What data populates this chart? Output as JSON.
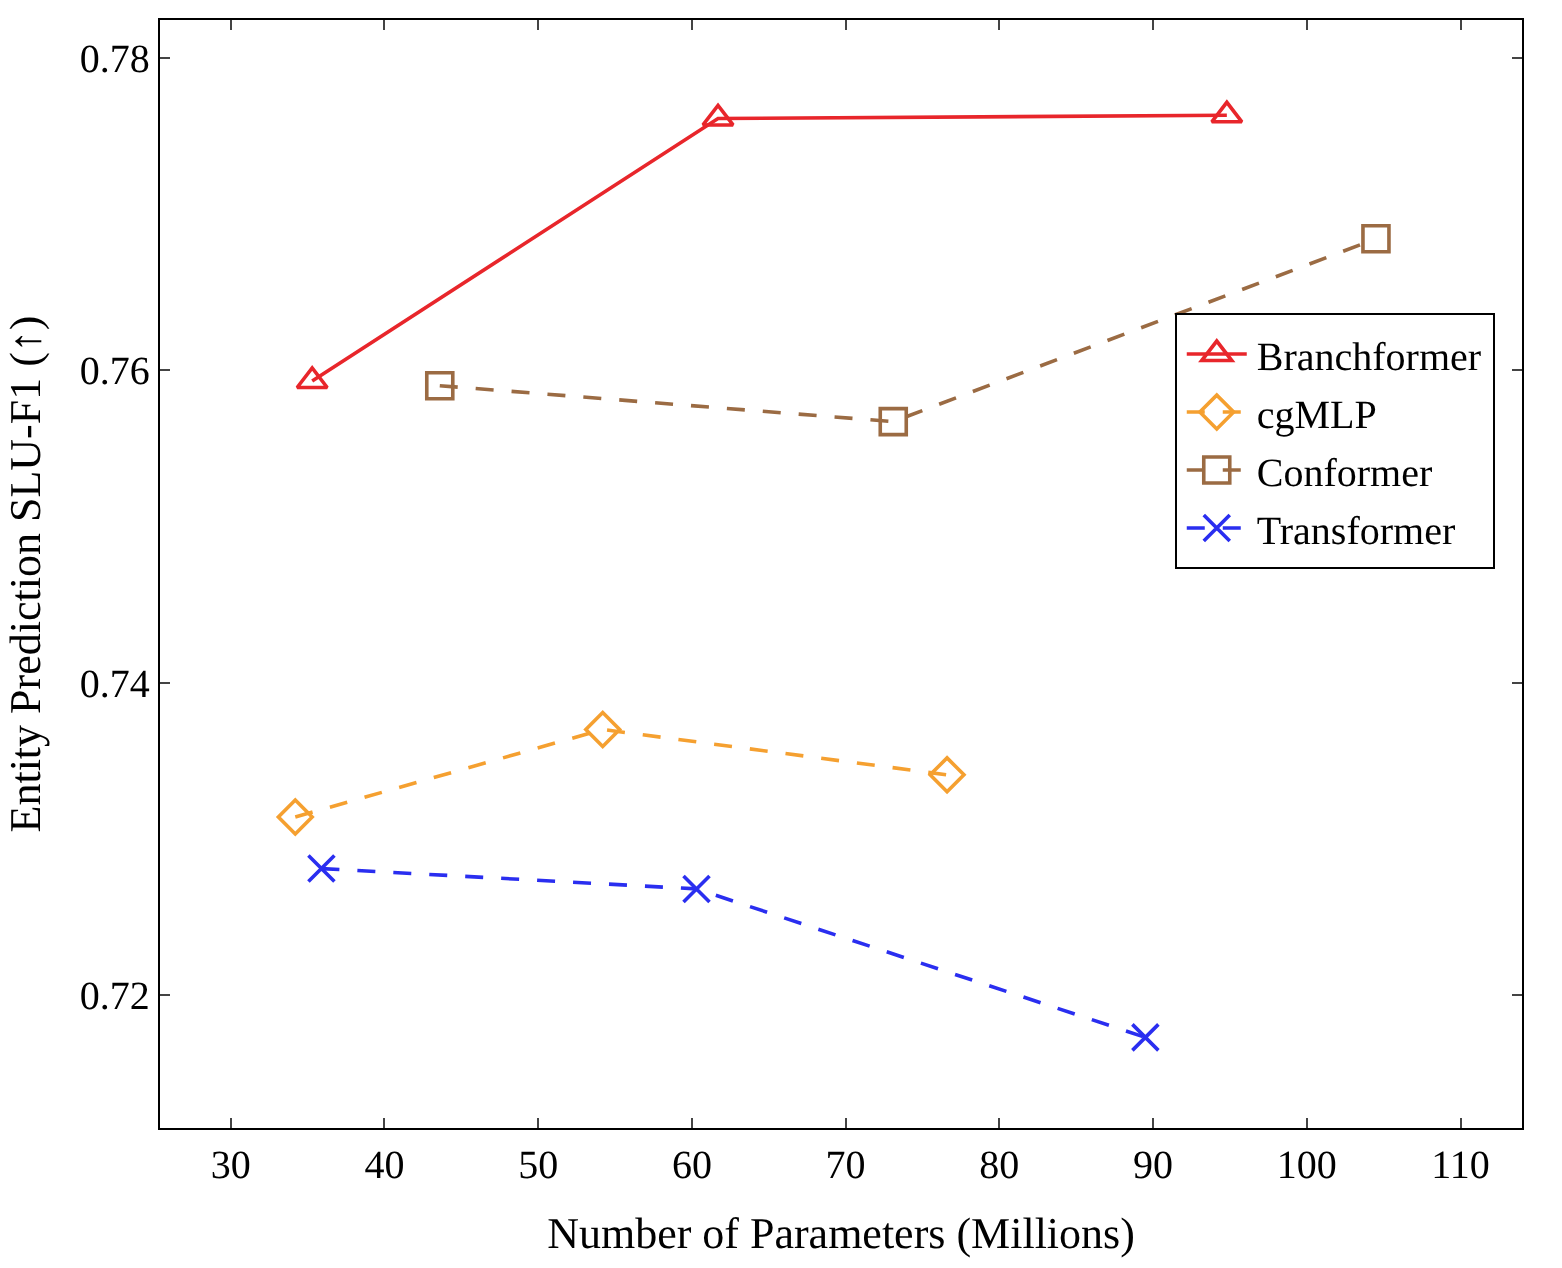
{
  "chart_data": {
    "type": "line",
    "xlabel": "Number of Parameters (Millions)",
    "ylabel": "Entity Prediction SLU-F1 (↑)",
    "xlim": [
      25.4,
      114
    ],
    "xticks": [
      30,
      40,
      50,
      60,
      70,
      80,
      90,
      100,
      110
    ],
    "ylim": [
      0.7115,
      0.7824
    ],
    "yticks": [
      0.72,
      0.74,
      0.76,
      0.78
    ],
    "legend": "right",
    "series": [
      {
        "name": "Branchformer",
        "color": "#e8262b",
        "marker": "triangle",
        "line_style": "solid",
        "x": [
          35.3,
          61.7,
          94.8
        ],
        "values": [
          0.7593,
          0.7761,
          0.7763
        ]
      },
      {
        "name": "cgMLP",
        "color": "#f5a030",
        "marker": "diamond",
        "line_style": "dashed",
        "x": [
          34.2,
          54.2,
          76.6
        ],
        "values": [
          0.7314,
          0.737,
          0.7341
        ]
      },
      {
        "name": "Conformer",
        "color": "#9b6b43",
        "marker": "square",
        "line_style": "dashed",
        "x": [
          43.6,
          73.1,
          104.5
        ],
        "values": [
          0.759,
          0.7567,
          0.7684
        ]
      },
      {
        "name": "Transformer",
        "color": "#2a2ef0",
        "marker": "cross",
        "line_style": "dashed",
        "x": [
          35.9,
          60.3,
          89.5
        ],
        "values": [
          0.7281,
          0.7268,
          0.7173
        ]
      }
    ]
  }
}
